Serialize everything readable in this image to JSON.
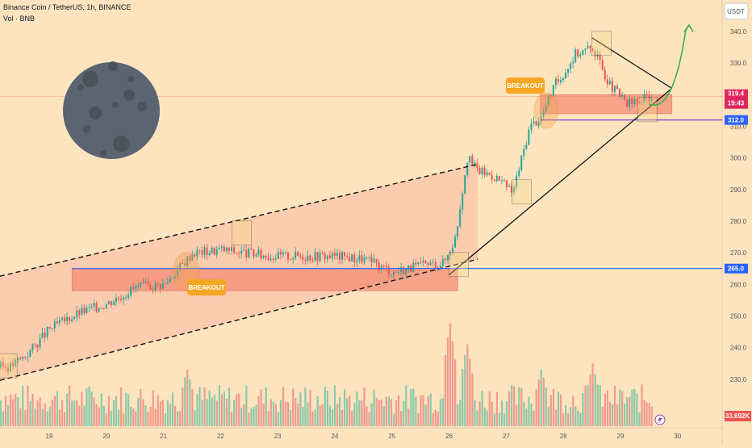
{
  "header": {
    "title": "Binance Coin / TetherUS, 1h, BINANCE",
    "volume_label": "Vol · BNB"
  },
  "currency_button": "USDT",
  "annotations": {
    "breakout_1": "BREAKOUT",
    "breakout_2": "BREAKOUT"
  },
  "price_badges": {
    "current_price": "319.4",
    "countdown": "19:43",
    "level_upper": "312.0",
    "level_lower": "265.0",
    "volume": "33.692K"
  },
  "colors": {
    "background": "#fde4bf",
    "bull": "#26a69a",
    "bear": "#ef5350",
    "zone": "#f48a73",
    "level_line": "#2962ff",
    "badge_red": "#e0245e",
    "badge_blue": "#2962ff",
    "breakout_badge": "#f5a623",
    "arrow": "#3cb043",
    "moon": "#5b6470"
  },
  "icons": {
    "moon": "full-moon-icon",
    "lightning": "lightning-icon"
  },
  "chart_data": {
    "type": "candlestick",
    "symbol": "BNBUSDT",
    "timeframe": "1h",
    "x_tick_labels": [
      "19",
      "20",
      "21",
      "22",
      "23",
      "24",
      "25",
      "26",
      "27",
      "28",
      "29",
      "30"
    ],
    "y_tick_labels": [
      "230.0",
      "240.0",
      "250.0",
      "260.0",
      "270.0",
      "280.0",
      "290.0",
      "300.0",
      "310.0",
      "330.0",
      "340.0"
    ],
    "ylim": [
      221,
      344
    ],
    "price_path_anchors": [
      {
        "day": 18.3,
        "close": 234
      },
      {
        "day": 18.6,
        "close": 238
      },
      {
        "day": 19.0,
        "close": 246
      },
      {
        "day": 19.5,
        "close": 251
      },
      {
        "day": 20.0,
        "close": 254
      },
      {
        "day": 20.5,
        "close": 259
      },
      {
        "day": 21.0,
        "close": 260
      },
      {
        "day": 21.5,
        "close": 270
      },
      {
        "day": 22.0,
        "close": 271
      },
      {
        "day": 22.4,
        "close": 270
      },
      {
        "day": 22.8,
        "close": 269
      },
      {
        "day": 23.4,
        "close": 269
      },
      {
        "day": 24.0,
        "close": 269
      },
      {
        "day": 24.5,
        "close": 268
      },
      {
        "day": 25.0,
        "close": 264
      },
      {
        "day": 25.5,
        "close": 266
      },
      {
        "day": 25.9,
        "close": 267
      },
      {
        "day": 26.1,
        "close": 275
      },
      {
        "day": 26.3,
        "close": 300
      },
      {
        "day": 26.5,
        "close": 296
      },
      {
        "day": 26.8,
        "close": 294
      },
      {
        "day": 27.1,
        "close": 289
      },
      {
        "day": 27.4,
        "close": 310
      },
      {
        "day": 27.6,
        "close": 313
      },
      {
        "day": 27.8,
        "close": 322
      },
      {
        "day": 28.0,
        "close": 327
      },
      {
        "day": 28.2,
        "close": 333
      },
      {
        "day": 28.5,
        "close": 335
      },
      {
        "day": 28.8,
        "close": 323
      },
      {
        "day": 29.1,
        "close": 317
      },
      {
        "day": 29.3,
        "close": 318
      },
      {
        "day": 29.5,
        "close": 319.4
      }
    ],
    "levels": [
      {
        "price": 312.0
      },
      {
        "price": 265.0
      }
    ],
    "zones": [
      {
        "from_day": 19.4,
        "to_day": 26.15,
        "low": 258,
        "high": 265
      },
      {
        "from_day": 27.6,
        "to_day": 29.9,
        "low": 314,
        "high": 320
      }
    ],
    "channel": {
      "upper": [
        {
          "day": 18.0,
          "price": 262
        },
        {
          "day": 26.5,
          "price": 298
        }
      ],
      "lower": [
        {
          "day": 18.0,
          "price": 229
        },
        {
          "day": 26.5,
          "price": 268
        }
      ]
    },
    "triangle": {
      "apex": {
        "day": 29.9,
        "price": 322
      },
      "upper_from": {
        "day": 28.5,
        "price": 338
      },
      "lower_from": {
        "day": 26.0,
        "price": 263
      }
    },
    "projection_arrow": {
      "from": {
        "day": 29.5,
        "price": 317
      },
      "to": {
        "day": 30.2,
        "price": 342
      }
    },
    "volume": {
      "last_value_label": "33.692K",
      "spikes": [
        {
          "day": 21.4,
          "rel": 0.55
        },
        {
          "day": 26.0,
          "rel": 1.0
        },
        {
          "day": 26.3,
          "rel": 0.8
        },
        {
          "day": 27.6,
          "rel": 0.55
        },
        {
          "day": 28.5,
          "rel": 0.6
        }
      ]
    }
  }
}
